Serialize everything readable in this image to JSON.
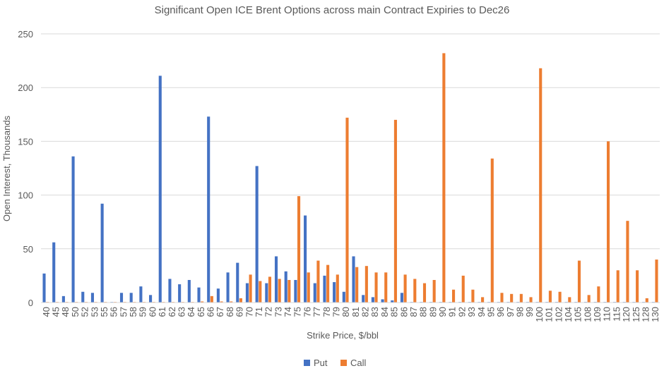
{
  "chart_data": {
    "type": "bar",
    "title": "Significant Open ICE Brent Options across main Contract Expiries to Dec26",
    "xlabel": "Strike Price, $/bbl",
    "ylabel": "Open Interest, Thousands",
    "ylim": [
      0,
      250
    ],
    "yticks": [
      0,
      50,
      100,
      150,
      200,
      250
    ],
    "grid": true,
    "legend_position": "bottom",
    "categories": [
      "40",
      "45",
      "48",
      "50",
      "52",
      "53",
      "55",
      "56",
      "57",
      "58",
      "59",
      "60",
      "61",
      "62",
      "63",
      "64",
      "65",
      "66",
      "67",
      "68",
      "69",
      "70",
      "71",
      "72",
      "73",
      "74",
      "75",
      "76",
      "77",
      "78",
      "79",
      "80",
      "81",
      "82",
      "83",
      "84",
      "85",
      "86",
      "87",
      "88",
      "89",
      "90",
      "91",
      "92",
      "93",
      "94",
      "95",
      "96",
      "97",
      "98",
      "99",
      "100",
      "101",
      "102",
      "104",
      "105",
      "108",
      "109",
      "110",
      "115",
      "120",
      "125",
      "128",
      "130"
    ],
    "series": [
      {
        "name": "Put",
        "color": "#4472C4",
        "values": [
          27,
          56,
          6,
          136,
          10,
          9,
          92,
          0,
          9,
          9,
          15,
          7,
          211,
          22,
          17,
          21,
          14,
          173,
          13,
          28,
          37,
          18,
          127,
          18,
          43,
          29,
          21,
          81,
          18,
          25,
          19,
          10,
          43,
          7,
          5,
          3,
          2,
          9,
          0,
          0,
          0,
          0,
          0,
          0,
          0,
          0,
          0,
          0,
          0,
          0,
          0,
          0,
          0,
          0,
          0,
          0,
          0,
          0,
          0,
          0,
          0,
          0,
          0,
          0
        ]
      },
      {
        "name": "Call",
        "color": "#ED7D31",
        "values": [
          0,
          0,
          0,
          0,
          0,
          0,
          0,
          0,
          0,
          0,
          0,
          0,
          0,
          0,
          0,
          0,
          1,
          6,
          1,
          1,
          4,
          26,
          20,
          24,
          22,
          21,
          99,
          28,
          39,
          35,
          26,
          172,
          33,
          34,
          28,
          28,
          170,
          26,
          22,
          18,
          21,
          232,
          12,
          25,
          12,
          5,
          134,
          9,
          8,
          8,
          5,
          218,
          11,
          10,
          5,
          39,
          7,
          15,
          150,
          30,
          76,
          30,
          4,
          40
        ]
      }
    ]
  }
}
